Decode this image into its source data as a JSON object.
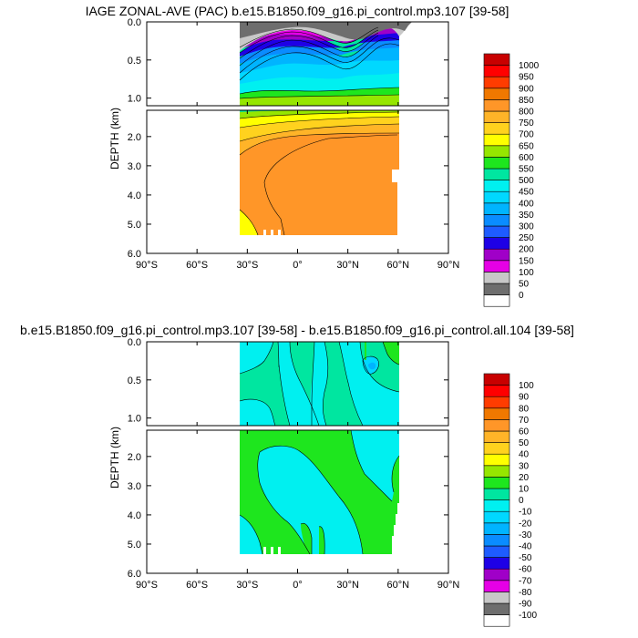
{
  "chart_data": [
    {
      "type": "contour",
      "title": "IAGE ZONAL-AVE (PAC) b.e15.B1850.f09_g16.pi_control.mp3.107 [39-58]",
      "ylabel": "DEPTH (km)",
      "x_ticks": [
        "90°S",
        "60°S",
        "30°S",
        "0°",
        "30°N",
        "60°N",
        "90°N"
      ],
      "x_range": [
        -90,
        90
      ],
      "upper_y_ticks": [
        "0.0",
        "0.5",
        "1.0"
      ],
      "upper_y_range": [
        0,
        1.1
      ],
      "lower_y_ticks": [
        "2.0",
        "3.0",
        "4.0",
        "5.0",
        "6.0"
      ],
      "lower_y_range": [
        1.1,
        6.0
      ],
      "data_x_extent": [
        -35,
        62
      ],
      "colorbar_levels": [
        "0",
        "50",
        "100",
        "150",
        "200",
        "250",
        "300",
        "350",
        "400",
        "450",
        "500",
        "550",
        "600",
        "650",
        "700",
        "750",
        "800",
        "850",
        "900",
        "950",
        "1000"
      ],
      "colorbar_colors": [
        "#ffffff",
        "#6e6e6e",
        "#c8c8c8",
        "#e600e6",
        "#a000c8",
        "#1e00e6",
        "#1e5cff",
        "#0a8cff",
        "#00b4ff",
        "#00d8ff",
        "#00f0f0",
        "#00e6a0",
        "#1ee61e",
        "#96e600",
        "#ffff00",
        "#ffd21e",
        "#ffb428",
        "#ff9628",
        "#f07800",
        "#ff3c00",
        "#ff0000",
        "#c80000"
      ]
    },
    {
      "type": "contour",
      "title": "b.e15.B1850.f09_g16.pi_control.mp3.107 [39-58] - b.e15.B1850.f09_g16.pi_control.all.104 [39-58]",
      "ylabel": "DEPTH (km)",
      "x_ticks": [
        "90°S",
        "60°S",
        "30°S",
        "0°",
        "30°N",
        "60°N",
        "90°N"
      ],
      "x_range": [
        -90,
        90
      ],
      "upper_y_ticks": [
        "0.0",
        "0.5",
        "1.0"
      ],
      "upper_y_range": [
        0,
        1.1
      ],
      "lower_y_ticks": [
        "2.0",
        "3.0",
        "4.0",
        "5.0",
        "6.0"
      ],
      "lower_y_range": [
        1.1,
        6.0
      ],
      "data_x_extent": [
        -35,
        62
      ],
      "colorbar_levels": [
        "-100",
        "-90",
        "-80",
        "-70",
        "-60",
        "-50",
        "-40",
        "-30",
        "-20",
        "-10",
        "0",
        "10",
        "20",
        "30",
        "40",
        "50",
        "60",
        "70",
        "80",
        "90",
        "100"
      ],
      "colorbar_colors": [
        "#ffffff",
        "#6e6e6e",
        "#c8c8c8",
        "#e600e6",
        "#a000c8",
        "#1e00e6",
        "#1e5cff",
        "#0a8cff",
        "#00b4ff",
        "#00d8ff",
        "#00f0f0",
        "#00e6a0",
        "#1ee61e",
        "#96e600",
        "#ffff00",
        "#ffd21e",
        "#ffb428",
        "#ff9628",
        "#f07800",
        "#ff3c00",
        "#ff0000",
        "#c80000"
      ]
    }
  ]
}
